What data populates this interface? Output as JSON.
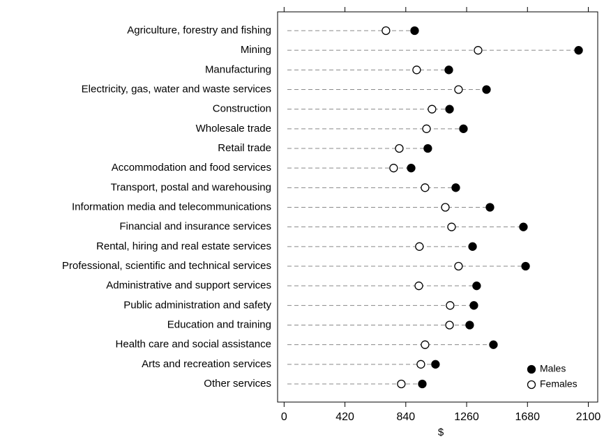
{
  "chart_data": {
    "type": "dot",
    "categories": [
      "Agriculture, forestry and fishing",
      "Mining",
      "Manufacturing",
      "Electricity, gas, water and waste services",
      "Construction",
      "Wholesale trade",
      "Retail trade",
      "Accommodation and food services",
      "Transport, postal and warehousing",
      "Information media and telecommunications",
      "Financial and insurance services",
      "Rental, hiring and real estate services",
      "Professional, scientific and technical services",
      "Administrative and support services",
      "Public administration and safety",
      "Education and training",
      "Health care and social assistance",
      "Arts and recreation services",
      "Other services"
    ],
    "series": [
      {
        "name": "Males",
        "color": "#000000",
        "values": [
          901,
          2033,
          1137,
          1397,
          1142,
          1238,
          992,
          877,
          1185,
          1421,
          1652,
          1301,
          1667,
          1329,
          1310,
          1281,
          1445,
          1045,
          954
        ]
      },
      {
        "name": "Females",
        "color": "#ffffff",
        "values": [
          703,
          1339,
          915,
          1204,
          1021,
          983,
          795,
          756,
          973,
          1113,
          1156,
          934,
          1204,
          930,
          1146,
          1142,
          973,
          944,
          809
        ]
      }
    ],
    "xlabel": "$",
    "xlim": [
      -45,
      2165
    ],
    "xticks": [
      0,
      420,
      840,
      1260,
      1680,
      2100
    ],
    "legend": "lower right"
  }
}
